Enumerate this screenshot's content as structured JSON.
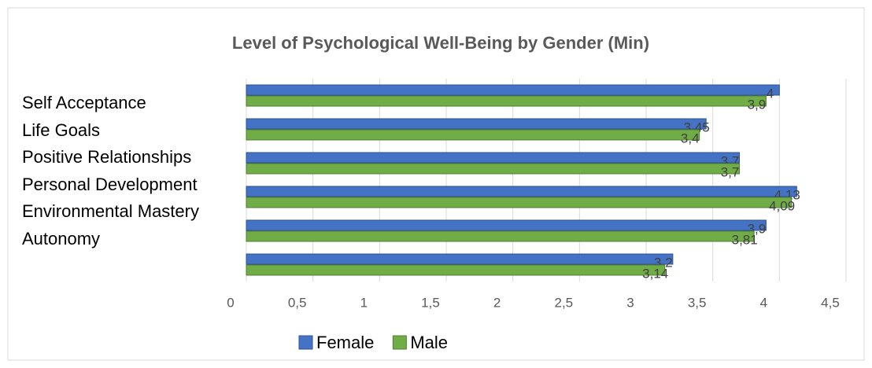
{
  "chart_data": {
    "type": "bar",
    "orientation": "horizontal",
    "title": "Level of Psychological Well-Being by Gender (Min)",
    "categories": [
      "Self Acceptance",
      "Life Goals",
      "Positive Relationships",
      "Personal Development",
      "Environmental Mastery",
      "Autonomy"
    ],
    "series": [
      {
        "name": "Female",
        "color": "#4472c4",
        "values": [
          4,
          3.45,
          3.7,
          4.13,
          3.9,
          3.2
        ],
        "value_labels": [
          "4",
          "3,45",
          "3,7",
          "4,13",
          "3,9",
          "3,2"
        ]
      },
      {
        "name": "Male",
        "color": "#70ad47",
        "values": [
          3.9,
          3.4,
          3.7,
          4.09,
          3.81,
          3.14
        ],
        "value_labels": [
          "3,9",
          "3,4",
          "3,7",
          "4,09",
          "3,81",
          "3,14"
        ]
      }
    ],
    "xlim": [
      0,
      4.5
    ],
    "xticks": [
      0,
      {
        "value": 0.5,
        "label": "0,5"
      },
      1,
      {
        "value": 1.5,
        "label": "1,5"
      },
      2,
      {
        "value": 2.5,
        "label": "2,5"
      },
      3,
      {
        "value": 3.5,
        "label": "3,5"
      },
      4,
      {
        "value": 4.5,
        "label": "4,5"
      }
    ],
    "grid": true,
    "legend": "bottom"
  }
}
